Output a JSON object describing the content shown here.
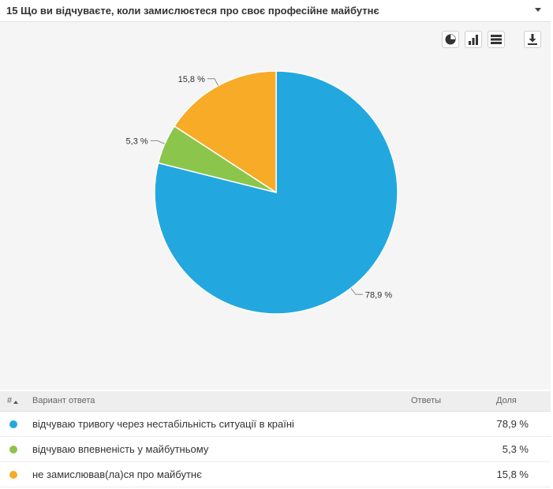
{
  "question": {
    "title": "15 Що ви відчуваєте, коли замислюєтеся про своє професійне майбутнє"
  },
  "toolbar": {
    "icons": [
      "pie-chart-icon",
      "bar-chart-icon",
      "table-view-icon",
      "download-icon"
    ]
  },
  "colors": {
    "blue": "#22a8df",
    "green": "#8cc54b",
    "orange": "#f7ab27"
  },
  "chart_data": {
    "type": "pie",
    "title": "",
    "categories": [
      "відчуваю тривогу через нестабільність ситуації в країні",
      "відчуваю впевненість у майбутньому",
      "не замислював(ла)ся про майбутнє"
    ],
    "values": [
      78.9,
      5.3,
      15.8
    ],
    "labels": [
      "78,9 %",
      "5,3 %",
      "15,8 %"
    ],
    "colors": [
      "#22a8df",
      "#8cc54b",
      "#f7ab27"
    ],
    "start": "12 o'clock, clockwise",
    "legend": "none"
  },
  "table": {
    "col_num": "#",
    "col_option": "Вариант ответа",
    "col_responses": "Ответы",
    "col_share": "Доля",
    "rows": [
      {
        "color": "#22a8df",
        "label": "відчуваю тривогу через нестабільність ситуації в країні",
        "share": "78,9 %"
      },
      {
        "color": "#8cc54b",
        "label": "відчуваю впевненість у майбутньому",
        "share": "5,3 %"
      },
      {
        "color": "#f7ab27",
        "label": "не замислював(ла)ся про майбутнє",
        "share": "15,8 %"
      }
    ]
  }
}
